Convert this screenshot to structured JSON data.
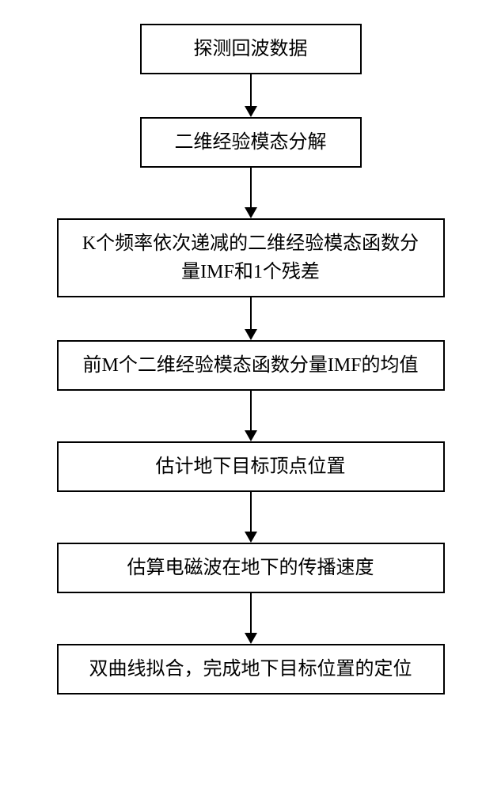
{
  "flowchart": {
    "type": "flowchart",
    "direction": "vertical",
    "nodes": [
      {
        "id": "n1",
        "label": "探测回波数据",
        "size": "small",
        "fontsize": 24
      },
      {
        "id": "n2",
        "label": "二维经验模态分解",
        "size": "small",
        "fontsize": 24
      },
      {
        "id": "n3",
        "label": "K个频率依次递减的二维经验模态函数分量IMF和1个残差",
        "size": "tall",
        "fontsize": 24
      },
      {
        "id": "n4",
        "label": "前M个二维经验模态函数分量IMF的均值",
        "size": "wide",
        "fontsize": 24
      },
      {
        "id": "n5",
        "label": "估计地下目标顶点位置",
        "size": "wide",
        "fontsize": 24
      },
      {
        "id": "n6",
        "label": "估算电磁波在地下的传播速度",
        "size": "wide",
        "fontsize": 24
      },
      {
        "id": "n7",
        "label": "双曲线拟合，完成地下目标位置的定位",
        "size": "wide",
        "fontsize": 24
      }
    ],
    "edges": [
      {
        "from": "n1",
        "to": "n2",
        "length": 40
      },
      {
        "from": "n2",
        "to": "n3",
        "length": 50
      },
      {
        "from": "n3",
        "to": "n4",
        "length": 40
      },
      {
        "from": "n4",
        "to": "n5",
        "length": 50
      },
      {
        "from": "n5",
        "to": "n6",
        "length": 50
      },
      {
        "from": "n6",
        "to": "n7",
        "length": 50
      }
    ],
    "styling": {
      "border_color": "#000000",
      "border_width": 2,
      "background_color": "#ffffff",
      "text_color": "#000000",
      "arrow_color": "#000000",
      "font_family": "SimSun"
    }
  }
}
